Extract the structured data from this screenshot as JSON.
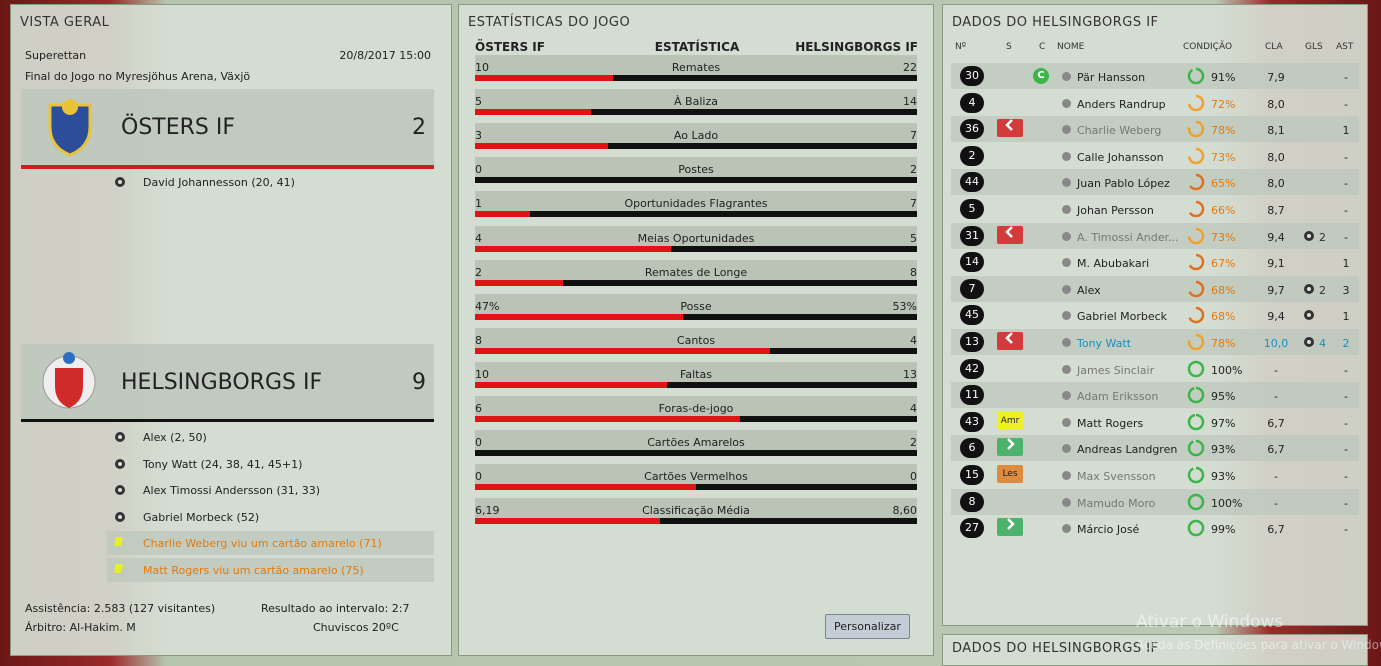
{
  "overview": {
    "title": "VISTA GERAL",
    "competition": "Superettan",
    "datetime": "20/8/2017 15:00",
    "venue": "Final do Jogo no Myresjöhus Arena, Växjö",
    "home": {
      "name": "ÖSTERS IF",
      "score": 2,
      "goals": [
        "David Johannesson (20, 41)"
      ]
    },
    "away": {
      "name": "HELSINGBORGS IF",
      "score": 9,
      "goals": [
        "Alex (2, 50)",
        "Tony Watt (24, 38, 41, 45+1)",
        "Alex Timossi Andersson (31, 33)",
        "Gabriel Morbeck (52)"
      ],
      "cards": [
        "Charlie Weberg viu um cartão amarelo (71)",
        "Matt Rogers viu um cartão amarelo (75)"
      ]
    },
    "attendance": "Assistência: 2.583 (127 visitantes)",
    "halftime": "Resultado ao intervalo: 2:7",
    "referee": "Árbitro: Al-Hakim. M",
    "weather": "Chuviscos 20ºC"
  },
  "stats": {
    "title": "ESTATÍSTICAS DO JOGO",
    "headers": [
      "ÖSTERS IF",
      "ESTATÍSTICA",
      "HELSINGBORGS IF"
    ],
    "rows": [
      {
        "home": 10,
        "label": "Remates",
        "away": 22
      },
      {
        "home": 5,
        "label": "À Baliza",
        "away": 14
      },
      {
        "home": 3,
        "label": "Ao Lado",
        "away": 7
      },
      {
        "home": 0,
        "label": "Postes",
        "away": 2
      },
      {
        "home": 1,
        "label": "Oportunidades Flagrantes",
        "away": 7
      },
      {
        "home": 4,
        "label": "Meias Oportunidades",
        "away": 5
      },
      {
        "home": 2,
        "label": "Remates de Longe",
        "away": 8
      },
      {
        "home": {
          "value": 47,
          "label": "47%"
        },
        "label": "Posse",
        "away": {
          "value": 53,
          "label": "53%"
        }
      },
      {
        "home": 8,
        "label": "Cantos",
        "away": 4
      },
      {
        "home": 10,
        "label": "Faltas",
        "away": 13
      },
      {
        "home": 6,
        "label": "Foras-de-jogo",
        "away": 4
      },
      {
        "home": 0,
        "label": "Cartões Amarelos",
        "away": 2
      },
      {
        "home": 0,
        "label": "Cartões Vermelhos",
        "away": 0
      },
      {
        "home": {
          "value": 6.19,
          "label": "6,19"
        },
        "label": "Classificação Média",
        "away": {
          "value": 8.6,
          "label": "8,60"
        }
      }
    ],
    "button": "Personalizar"
  },
  "players": {
    "title": "DADOS DO HELSINGBORGS IF",
    "columns": [
      "Nº",
      "S",
      "C",
      "NOME",
      "CONDIÇÃO",
      "CLA",
      "GLS",
      "AST"
    ],
    "captain_label": "C",
    "rows": [
      {
        "number": 30,
        "captain": true,
        "name": "Pär Hansson",
        "condition": {
          "value": 91,
          "label": "91%"
        },
        "rating": "7,9",
        "assists": "-"
      },
      {
        "number": 4,
        "name": "Anders Randrup",
        "condition": {
          "value": 72,
          "label": "72%"
        },
        "rating": "8,0",
        "assists": "-"
      },
      {
        "number": 36,
        "sub": "out",
        "dim": true,
        "name": "Charlie Weberg",
        "condition": {
          "value": 78,
          "label": "78%"
        },
        "rating": "8,1",
        "assists": 1
      },
      {
        "number": 2,
        "name": "Calle Johansson",
        "condition": {
          "value": 73,
          "label": "73%"
        },
        "rating": "8,0",
        "assists": "-"
      },
      {
        "number": 44,
        "name": "Juan Pablo López",
        "condition": {
          "value": 65,
          "label": "65%"
        },
        "rating": "8,0",
        "assists": "-"
      },
      {
        "number": 5,
        "name": "Johan Persson",
        "condition": {
          "value": 66,
          "label": "66%"
        },
        "rating": "8,7",
        "assists": "-"
      },
      {
        "number": 31,
        "sub": "out",
        "dim": true,
        "name": "A. Timossi Ander...",
        "condition": {
          "value": 73,
          "label": "73%"
        },
        "rating": "9,4",
        "goal_icon": true,
        "goals": 2,
        "assists": "-"
      },
      {
        "number": 14,
        "name": "M. Abubakari",
        "condition": {
          "value": 67,
          "label": "67%"
        },
        "rating": "9,1",
        "assists": 1
      },
      {
        "number": 7,
        "name": "Alex",
        "condition": {
          "value": 68,
          "label": "68%"
        },
        "rating": "9,7",
        "goal_icon": true,
        "goals": 2,
        "assists": 3
      },
      {
        "number": 45,
        "name": "Gabriel Morbeck",
        "condition": {
          "value": 68,
          "label": "68%"
        },
        "rating": "9,4",
        "goal_icon": true,
        "assists": 1
      },
      {
        "number": 13,
        "sub": "out",
        "highlight": true,
        "name": "Tony Watt",
        "condition": {
          "value": 78,
          "label": "78%"
        },
        "rating": "10,0",
        "goal_icon": true,
        "goals": 4,
        "assists": 2
      },
      {
        "number": 42,
        "dim": true,
        "name": "James Sinclair",
        "condition": {
          "value": 100,
          "label": "100%"
        },
        "rating": "-",
        "assists": "-"
      },
      {
        "number": 11,
        "dim": true,
        "name": "Adam Eriksson",
        "condition": {
          "value": 95,
          "label": "95%"
        },
        "rating": "-",
        "assists": "-"
      },
      {
        "number": 43,
        "badge": "Amr",
        "name": "Matt Rogers",
        "condition": {
          "value": 97,
          "label": "97%"
        },
        "rating": "6,7",
        "assists": "-"
      },
      {
        "number": 6,
        "sub": "in",
        "name": "Andreas Landgren",
        "condition": {
          "value": 93,
          "label": "93%"
        },
        "rating": "6,7",
        "assists": "-"
      },
      {
        "number": 15,
        "badge": "Les",
        "dim": true,
        "name": "Max Svensson",
        "condition": {
          "value": 93,
          "label": "93%"
        },
        "rating": "-",
        "assists": "-"
      },
      {
        "number": 8,
        "dim": true,
        "name": "Mamudo Moro",
        "condition": {
          "value": 100,
          "label": "100%"
        },
        "rating": "-",
        "assists": "-"
      },
      {
        "number": 27,
        "sub": "in",
        "name": "Márcio José",
        "condition": {
          "value": 99,
          "label": "99%"
        },
        "rating": "6,7",
        "assists": "-"
      }
    ]
  },
  "lower_panel": {
    "title": "DADOS DO HELSINGBORGS IF"
  },
  "watermark": {
    "title": "Ativar o Windows",
    "text": "Aceda às Definições para ativar o Windows."
  }
}
